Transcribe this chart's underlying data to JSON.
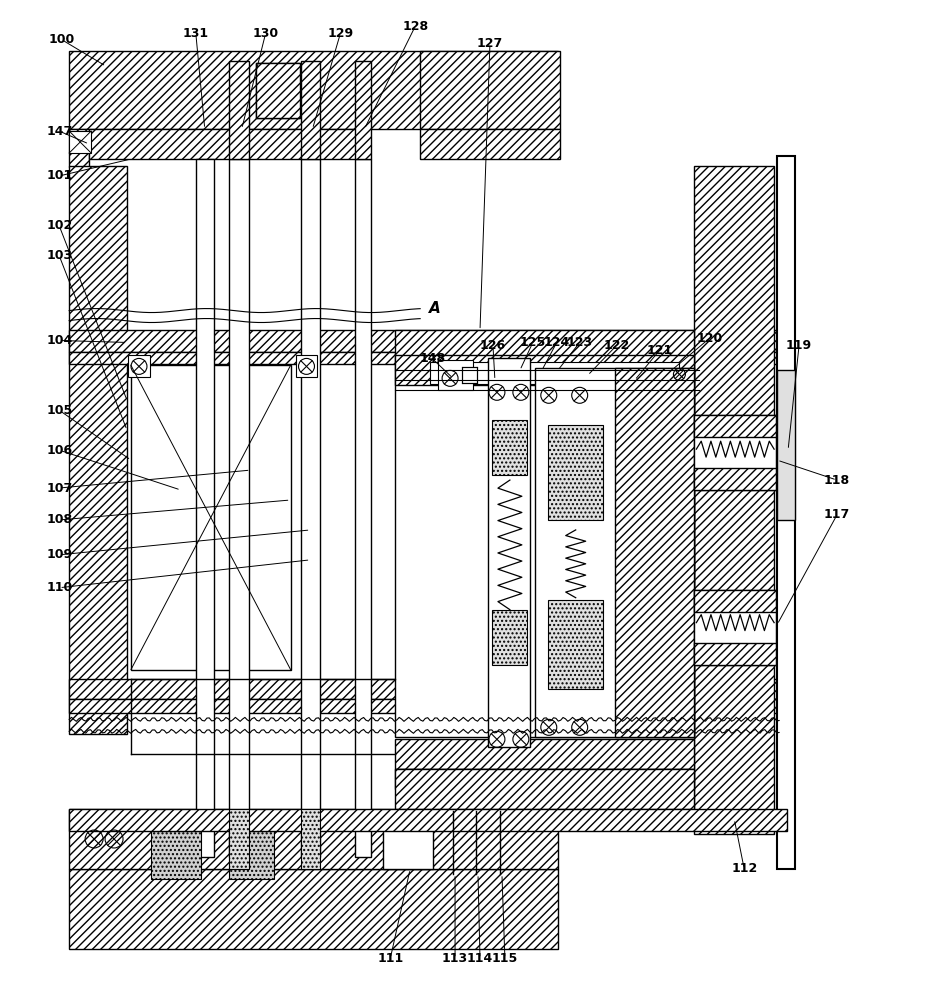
{
  "bg_color": "#ffffff",
  "fig_w": 9.51,
  "fig_h": 10.0,
  "dpi": 100,
  "xlim": [
    0,
    951
  ],
  "ylim": [
    0,
    1000
  ]
}
